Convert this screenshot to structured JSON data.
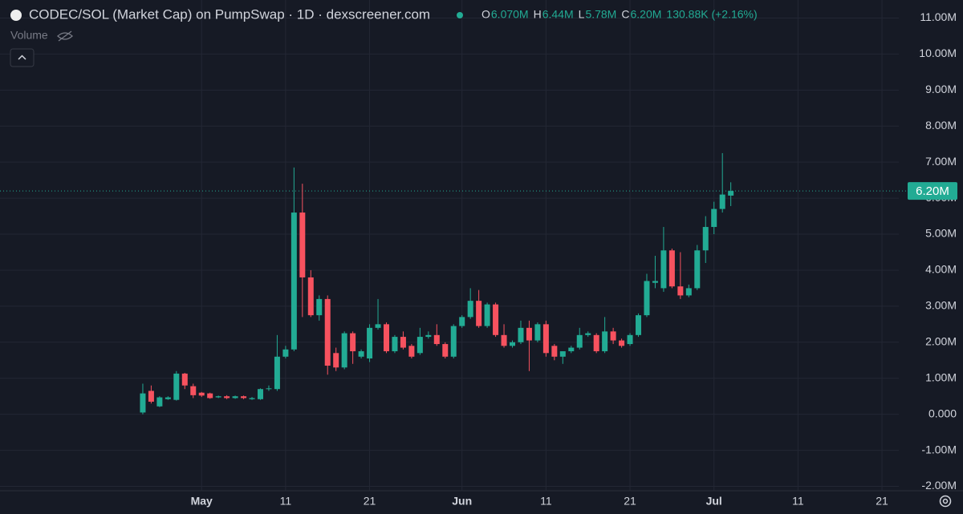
{
  "chart_data": {
    "type": "candlestick",
    "title": "CODEC/SOL (Market Cap) on PumpSwap · 1D · dexscreener.com",
    "ohlc_legend": [
      {
        "key": "O",
        "text": "6.070M"
      },
      {
        "key": "H",
        "text": "6.44M"
      },
      {
        "key": "L",
        "text": "5.78M"
      },
      {
        "key": "C",
        "text": "6.20M"
      },
      {
        "key": null,
        "text": "130.88K (+2.16%)"
      }
    ],
    "volume_label": "Volume",
    "up_color": "#22ab94",
    "down_color": "#f7525f",
    "grid": true,
    "xlim": [
      "04-07",
      "07-23"
    ],
    "xticks": [
      {
        "value": "05-01",
        "label": "May"
      },
      {
        "value": "05-11",
        "label": "11"
      },
      {
        "value": "05-21",
        "label": "21"
      },
      {
        "value": "06-01",
        "label": "Jun"
      },
      {
        "value": "06-11",
        "label": "11"
      },
      {
        "value": "06-21",
        "label": "21"
      },
      {
        "value": "07-01",
        "label": "Jul"
      },
      {
        "value": "07-11",
        "label": "11"
      },
      {
        "value": "07-21",
        "label": "21"
      }
    ],
    "ylim": [
      -2.3,
      11.5
    ],
    "yticks": [
      {
        "value": 11,
        "label": "11.00M"
      },
      {
        "value": 10,
        "label": "10.00M"
      },
      {
        "value": 9,
        "label": "9.00M"
      },
      {
        "value": 8,
        "label": "8.00M"
      },
      {
        "value": 7,
        "label": "7.00M"
      },
      {
        "value": 6,
        "label": "6.00M"
      },
      {
        "value": 5,
        "label": "5.00M"
      },
      {
        "value": 4,
        "label": "4.00M"
      },
      {
        "value": 3,
        "label": "3.00M"
      },
      {
        "value": 2,
        "label": "2.00M"
      },
      {
        "value": 1,
        "label": "1.00M"
      },
      {
        "value": 0,
        "label": "0.000"
      },
      {
        "value": -1,
        "label": "-1.00M"
      },
      {
        "value": -2,
        "label": "-2.00M"
      }
    ],
    "last_price": {
      "value": 6.2,
      "label": "6.20M"
    },
    "x": [
      "04-24",
      "04-25",
      "04-26",
      "04-27",
      "04-28",
      "04-29",
      "04-30",
      "05-01",
      "05-02",
      "05-03",
      "05-04",
      "05-05",
      "05-06",
      "05-07",
      "05-08",
      "05-09",
      "05-10",
      "05-11",
      "05-12",
      "05-13",
      "05-14",
      "05-15",
      "05-16",
      "05-17",
      "05-18",
      "05-19",
      "05-20",
      "05-21",
      "05-22",
      "05-23",
      "05-24",
      "05-25",
      "05-26",
      "05-27",
      "05-28",
      "05-29",
      "05-30",
      "05-31",
      "06-01",
      "06-02",
      "06-03",
      "06-04",
      "06-05",
      "06-06",
      "06-07",
      "06-08",
      "06-09",
      "06-10",
      "06-11",
      "06-12",
      "06-13",
      "06-14",
      "06-15",
      "06-16",
      "06-17",
      "06-18",
      "06-19",
      "06-20",
      "06-21",
      "06-22",
      "06-23",
      "06-24",
      "06-25",
      "06-26",
      "06-27",
      "06-28",
      "06-29",
      "06-30",
      "07-01",
      "07-02",
      "07-03"
    ],
    "open": [
      0.05,
      0.65,
      0.22,
      0.42,
      0.4,
      1.13,
      0.78,
      0.6,
      0.58,
      0.47,
      0.5,
      0.45,
      0.5,
      0.42,
      0.42,
      0.7,
      0.7,
      1.6,
      1.8,
      5.6,
      3.8,
      2.75,
      3.2,
      1.7,
      1.3,
      2.25,
      1.6,
      1.55,
      2.4,
      2.5,
      1.75,
      2.15,
      1.9,
      1.7,
      2.15,
      2.2,
      1.95,
      1.6,
      2.45,
      2.7,
      3.15,
      2.45,
      3.05,
      2.2,
      1.9,
      2.0,
      2.4,
      2.05,
      2.5,
      1.9,
      1.6,
      1.75,
      1.85,
      2.2,
      2.2,
      1.75,
      2.3,
      2.05,
      1.95,
      2.2,
      2.75,
      3.65,
      3.5,
      4.55,
      3.55,
      3.3,
      3.5,
      4.55,
      5.2,
      5.7,
      6.07
    ],
    "high": [
      0.85,
      0.8,
      0.5,
      0.5,
      1.2,
      1.15,
      0.85,
      0.62,
      0.6,
      0.52,
      0.53,
      0.52,
      0.52,
      0.48,
      0.72,
      0.8,
      2.2,
      1.9,
      6.85,
      6.4,
      4.0,
      3.3,
      3.3,
      1.85,
      2.3,
      2.3,
      1.8,
      2.5,
      3.2,
      2.55,
      2.2,
      2.3,
      1.95,
      2.4,
      2.3,
      2.5,
      2.0,
      2.5,
      2.75,
      3.5,
      3.45,
      3.1,
      3.1,
      2.5,
      2.05,
      2.6,
      2.6,
      2.55,
      2.6,
      1.95,
      1.75,
      1.9,
      2.4,
      2.3,
      2.25,
      2.7,
      2.4,
      2.1,
      2.25,
      2.8,
      3.9,
      4.4,
      5.2,
      4.6,
      4.5,
      3.6,
      4.7,
      5.5,
      5.9,
      7.25,
      6.44
    ],
    "low": [
      0.0,
      0.3,
      0.2,
      0.4,
      0.38,
      0.7,
      0.45,
      0.48,
      0.43,
      0.45,
      0.42,
      0.43,
      0.42,
      0.4,
      0.4,
      0.65,
      0.65,
      1.55,
      1.75,
      2.7,
      2.7,
      2.6,
      1.1,
      1.2,
      1.25,
      1.4,
      1.55,
      1.45,
      2.35,
      1.7,
      1.7,
      1.8,
      1.55,
      1.65,
      2.1,
      1.9,
      1.55,
      1.55,
      2.4,
      2.65,
      2.4,
      2.4,
      2.15,
      1.85,
      1.85,
      1.95,
      1.2,
      2.0,
      1.6,
      1.5,
      1.4,
      1.7,
      1.8,
      2.15,
      1.7,
      1.7,
      1.95,
      1.85,
      1.9,
      2.15,
      2.7,
      3.5,
      3.4,
      3.5,
      3.2,
      3.25,
      3.45,
      4.2,
      5.0,
      5.6,
      5.78
    ],
    "close": [
      0.58,
      0.35,
      0.47,
      0.47,
      1.13,
      0.8,
      0.53,
      0.52,
      0.45,
      0.5,
      0.45,
      0.5,
      0.45,
      0.45,
      0.7,
      0.72,
      1.6,
      1.8,
      5.6,
      3.8,
      2.75,
      3.2,
      1.35,
      1.3,
      2.25,
      1.75,
      1.75,
      2.4,
      2.5,
      1.75,
      2.15,
      1.85,
      1.6,
      2.15,
      2.2,
      1.95,
      1.6,
      2.45,
      2.7,
      3.15,
      2.45,
      3.05,
      2.2,
      1.9,
      2.0,
      2.4,
      2.05,
      2.5,
      1.7,
      1.6,
      1.75,
      1.85,
      2.2,
      2.25,
      1.75,
      2.3,
      2.05,
      1.9,
      2.2,
      2.75,
      3.7,
      3.7,
      4.55,
      3.55,
      3.3,
      3.5,
      4.55,
      5.2,
      5.7,
      6.1,
      6.2
    ]
  }
}
